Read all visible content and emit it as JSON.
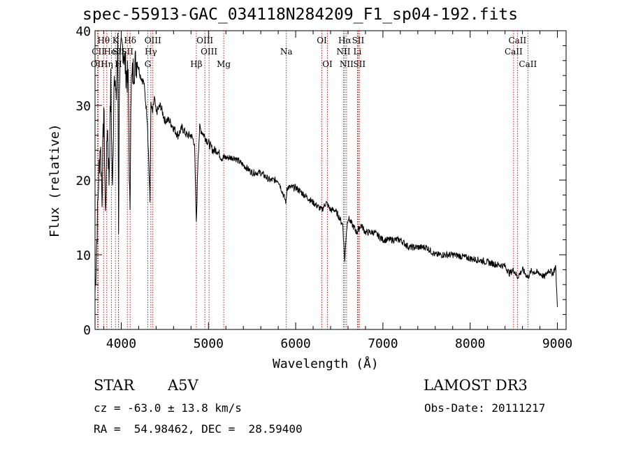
{
  "chart_data": {
    "type": "line",
    "title": "spec-55913-GAC_034118N284209_F1_sp04-192.fits",
    "xlabel": "Wavelength (Å)",
    "ylabel": "Flux (relative)",
    "xlim": [
      3700,
      9100
    ],
    "ylim": [
      0,
      40
    ],
    "xticks": [
      4000,
      5000,
      6000,
      7000,
      8000,
      9000
    ],
    "yticks": [
      0,
      10,
      20,
      30,
      40
    ],
    "grid": false,
    "series": [
      {
        "name": "flux",
        "x": [
          3700,
          3720,
          3740,
          3760,
          3780,
          3800,
          3820,
          3840,
          3860,
          3880,
          3900,
          3920,
          3940,
          3960,
          3970,
          3980,
          4000,
          4020,
          4050,
          4080,
          4101,
          4110,
          4140,
          4180,
          4220,
          4260,
          4300,
          4330,
          4340,
          4360,
          4380,
          4400,
          4450,
          4500,
          4550,
          4600,
          4650,
          4700,
          4750,
          4800,
          4840,
          4861,
          4880,
          4900,
          4950,
          5000,
          5050,
          5100,
          5150,
          5200,
          5300,
          5400,
          5500,
          5600,
          5700,
          5800,
          5890,
          5900,
          6000,
          6100,
          6200,
          6300,
          6350,
          6400,
          6450,
          6500,
          6540,
          6563,
          6580,
          6600,
          6650,
          6700,
          6750,
          6800,
          6900,
          7000,
          7100,
          7200,
          7300,
          7400,
          7500,
          7600,
          7700,
          7800,
          7900,
          8000,
          8100,
          8200,
          8300,
          8400,
          8450,
          8500,
          8542,
          8600,
          8662,
          8700,
          8800,
          8850,
          8900,
          8950,
          8980,
          9000
        ],
        "values": [
          5,
          12,
          20,
          25,
          18,
          30,
          15,
          28,
          20,
          33,
          18,
          36,
          30,
          38,
          14,
          34,
          37,
          38,
          35,
          33,
          14,
          32,
          35,
          36,
          34,
          33,
          28,
          17,
          30,
          29,
          31,
          29,
          30,
          28,
          28,
          27,
          26,
          27,
          26,
          26,
          25,
          14,
          23,
          27,
          26,
          25,
          24,
          24,
          23,
          23,
          23,
          22,
          21,
          21,
          20,
          20,
          17,
          19,
          19,
          18,
          17,
          16,
          17,
          16,
          16,
          15,
          14,
          9,
          13,
          15,
          14,
          13,
          14,
          13,
          13,
          12,
          12,
          12,
          11,
          11,
          11,
          10,
          10,
          10,
          9.8,
          9.5,
          9.3,
          9,
          8.7,
          8.5,
          7.5,
          8,
          7,
          8,
          7,
          7.8,
          7.5,
          7,
          8,
          7.5,
          8.5,
          3
        ]
      }
    ],
    "lines": [
      {
        "label": "Hθ",
        "wavelength": 3798,
        "row": 1
      },
      {
        "label": "OII",
        "wavelength": 3727,
        "row": 3
      },
      {
        "label": "CII",
        "wavelength": 3737,
        "row": 2
      },
      {
        "label": "Hη",
        "wavelength": 3835,
        "row": 3
      },
      {
        "label": "HeI",
        "wavelength": 3889,
        "row": 2
      },
      {
        "label": "K",
        "wavelength": 3934,
        "row": 1
      },
      {
        "label": "SII",
        "wavelength": 3970,
        "row": 2
      },
      {
        "label": "H",
        "wavelength": 3968,
        "row": 3
      },
      {
        "label": "Hδ",
        "wavelength": 4102,
        "row": 1
      },
      {
        "label": "SII",
        "wavelength": 4070,
        "row": 2
      },
      {
        "label": "OIII",
        "wavelength": 4363,
        "row": 1
      },
      {
        "label": "Hγ",
        "wavelength": 4340,
        "row": 2
      },
      {
        "label": "G",
        "wavelength": 4305,
        "row": 3
      },
      {
        "label": "OIII",
        "wavelength": 4959,
        "row": 1
      },
      {
        "label": "OIII",
        "wavelength": 5007,
        "row": 2
      },
      {
        "label": "Hβ",
        "wavelength": 4861,
        "row": 3
      },
      {
        "label": "Mg",
        "wavelength": 5175,
        "row": 3
      },
      {
        "label": "Na",
        "wavelength": 5893,
        "row": 2
      },
      {
        "label": "OI",
        "wavelength": 6300,
        "row": 1
      },
      {
        "label": "OI",
        "wavelength": 6364,
        "row": 3
      },
      {
        "label": "Hα",
        "wavelength": 6563,
        "row": 1
      },
      {
        "label": "SII",
        "wavelength": 6716,
        "row": 1
      },
      {
        "label": "NII",
        "wavelength": 6548,
        "row": 2
      },
      {
        "label": "Li",
        "wavelength": 6708,
        "row": 2
      },
      {
        "label": "NII",
        "wavelength": 6583,
        "row": 3
      },
      {
        "label": "SII",
        "wavelength": 6731,
        "row": 3
      },
      {
        "label": "CaII",
        "wavelength": 8542,
        "row": 1
      },
      {
        "label": "CaII",
        "wavelength": 8498,
        "row": 2
      },
      {
        "label": "CaII",
        "wavelength": 8662,
        "row": 3
      }
    ]
  },
  "info": {
    "class": "STAR",
    "subclass": "A5V",
    "survey": "LAMOST DR3",
    "cz": "cz = -63.0 ± 13.8 km/s",
    "obs_date": "Obs-Date: 20111217",
    "radec": "RA =  54.98462, DEC =  28.59400"
  }
}
